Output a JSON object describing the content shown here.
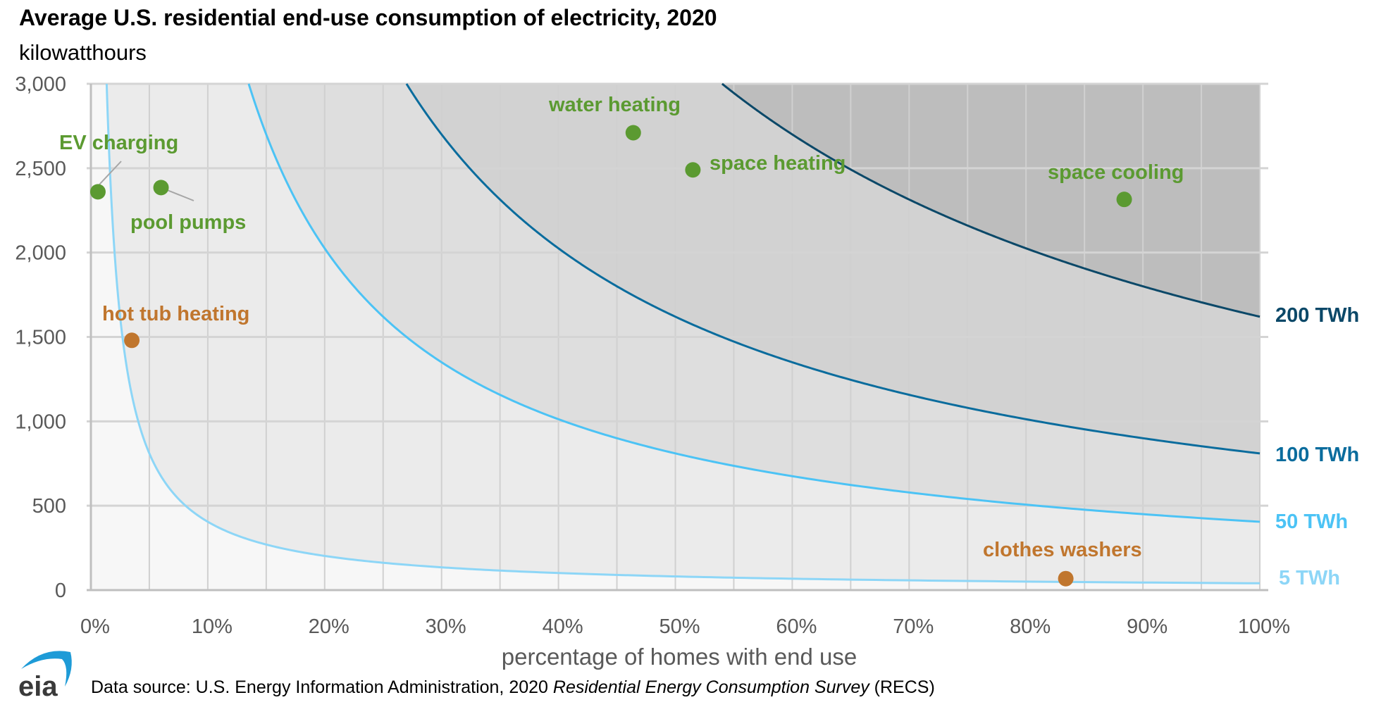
{
  "chart_data": {
    "type": "scatter",
    "title": "Average U.S. residential end-use consumption of electricity, 2020",
    "subtitle": "kilowatthours",
    "xlabel": "percentage of homes with end use",
    "ylabel": "kilowatthours",
    "xlim": [
      0,
      100
    ],
    "ylim": [
      0,
      3000
    ],
    "x_ticks": [
      "0%",
      "10%",
      "20%",
      "30%",
      "40%",
      "50%",
      "60%",
      "70%",
      "80%",
      "90%",
      "100%"
    ],
    "y_ticks": [
      "0",
      "500",
      "1,000",
      "1,500",
      "2,000",
      "2,500",
      "3,000"
    ],
    "y_tick_values": [
      0,
      500,
      1000,
      1500,
      2000,
      2500,
      3000
    ],
    "grid": true,
    "points": [
      {
        "label": "EV charging",
        "x": 0.6,
        "y": 2360,
        "color": "#5b9a31"
      },
      {
        "label": "pool pumps",
        "x": 6.0,
        "y": 2385,
        "color": "#5b9a31"
      },
      {
        "label": "water heating",
        "x": 46.4,
        "y": 2710,
        "color": "#5b9a31"
      },
      {
        "label": "space heating",
        "x": 51.5,
        "y": 2490,
        "color": "#5b9a31"
      },
      {
        "label": "space cooling",
        "x": 88.4,
        "y": 2315,
        "color": "#5b9a31"
      },
      {
        "label": "hot tub heating",
        "x": 3.5,
        "y": 1480,
        "color": "#c0762e"
      },
      {
        "label": "clothes washers",
        "x": 83.4,
        "y": 68,
        "color": "#c0762e"
      }
    ],
    "iso_curves": [
      {
        "label": "5 TWh",
        "twh": 5,
        "y_at_100pct": 40.5,
        "color": "#8dd6f7"
      },
      {
        "label": "50 TWh",
        "twh": 50,
        "y_at_100pct": 405,
        "color": "#4cc3f5"
      },
      {
        "label": "100 TWh",
        "twh": 100,
        "y_at_100pct": 810,
        "color": "#0a6c9d"
      },
      {
        "label": "200 TWh",
        "twh": 200,
        "y_at_100pct": 1620,
        "color": "#0b4868"
      }
    ],
    "source_prefix": "Data source: U.S. Energy Information Administration, 2020 ",
    "source_italic": "Residential Energy Consumption Survey",
    "source_suffix": " (RECS)",
    "logo_text": "eia"
  }
}
